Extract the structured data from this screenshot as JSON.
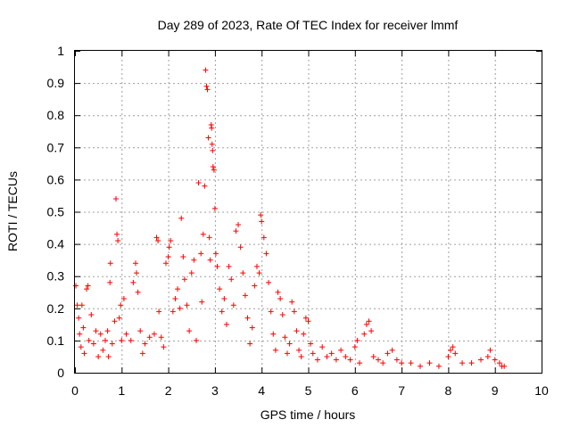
{
  "chart_data": {
    "type": "scatter",
    "title": "Day 289 of 2023, Rate Of TEC Index for receiver lmmf",
    "xlabel": "GPS time / hours",
    "ylabel": "ROTI / TECUs",
    "xlim": [
      0,
      10
    ],
    "ylim": [
      0,
      1
    ],
    "x_ticks": [
      "0",
      "1",
      "2",
      "3",
      "4",
      "5",
      "6",
      "7",
      "8",
      "9",
      "10"
    ],
    "y_ticks": [
      "0",
      "0.1",
      "0.2",
      "0.3",
      "0.4",
      "0.5",
      "0.6",
      "0.7",
      "0.8",
      "0.9",
      "1"
    ],
    "grid": true,
    "marker": "+",
    "marker_color": "#ff0000",
    "series": [
      {
        "name": "ROTI",
        "points": [
          [
            0.02,
            0.27
          ],
          [
            0.05,
            0.21
          ],
          [
            0.08,
            0.17
          ],
          [
            0.1,
            0.12
          ],
          [
            0.13,
            0.08
          ],
          [
            0.15,
            0.21
          ],
          [
            0.18,
            0.14
          ],
          [
            0.2,
            0.06
          ],
          [
            0.25,
            0.26
          ],
          [
            0.28,
            0.27
          ],
          [
            0.3,
            0.1
          ],
          [
            0.35,
            0.18
          ],
          [
            0.4,
            0.09
          ],
          [
            0.45,
            0.13
          ],
          [
            0.5,
            0.05
          ],
          [
            0.55,
            0.12
          ],
          [
            0.6,
            0.07
          ],
          [
            0.65,
            0.1
          ],
          [
            0.7,
            0.13
          ],
          [
            0.72,
            0.05
          ],
          [
            0.75,
            0.28
          ],
          [
            0.76,
            0.34
          ],
          [
            0.8,
            0.09
          ],
          [
            0.85,
            0.16
          ],
          [
            0.88,
            0.54
          ],
          [
            0.9,
            0.43
          ],
          [
            0.92,
            0.41
          ],
          [
            0.95,
            0.17
          ],
          [
            0.98,
            0.21
          ],
          [
            1.0,
            0.1
          ],
          [
            1.05,
            0.23
          ],
          [
            1.1,
            0.12
          ],
          [
            1.2,
            0.1
          ],
          [
            1.25,
            0.28
          ],
          [
            1.3,
            0.34
          ],
          [
            1.32,
            0.31
          ],
          [
            1.35,
            0.25
          ],
          [
            1.4,
            0.13
          ],
          [
            1.45,
            0.06
          ],
          [
            1.5,
            0.09
          ],
          [
            1.6,
            0.11
          ],
          [
            1.7,
            0.12
          ],
          [
            1.75,
            0.42
          ],
          [
            1.78,
            0.41
          ],
          [
            1.8,
            0.19
          ],
          [
            1.85,
            0.11
          ],
          [
            1.9,
            0.08
          ],
          [
            1.95,
            0.34
          ],
          [
            2.0,
            0.36
          ],
          [
            2.02,
            0.39
          ],
          [
            2.05,
            0.41
          ],
          [
            2.1,
            0.19
          ],
          [
            2.15,
            0.23
          ],
          [
            2.2,
            0.26
          ],
          [
            2.25,
            0.2
          ],
          [
            2.28,
            0.48
          ],
          [
            2.32,
            0.36
          ],
          [
            2.35,
            0.29
          ],
          [
            2.4,
            0.21
          ],
          [
            2.45,
            0.13
          ],
          [
            2.5,
            0.31
          ],
          [
            2.55,
            0.35
          ],
          [
            2.6,
            0.1
          ],
          [
            2.65,
            0.59
          ],
          [
            2.7,
            0.37
          ],
          [
            2.72,
            0.22
          ],
          [
            2.75,
            0.43
          ],
          [
            2.78,
            0.58
          ],
          [
            2.8,
            0.94
          ],
          [
            2.82,
            0.89
          ],
          [
            2.84,
            0.88
          ],
          [
            2.86,
            0.73
          ],
          [
            2.88,
            0.42
          ],
          [
            2.9,
            0.35
          ],
          [
            2.92,
            0.77
          ],
          [
            2.93,
            0.76
          ],
          [
            2.94,
            0.71
          ],
          [
            2.95,
            0.69
          ],
          [
            2.96,
            0.64
          ],
          [
            2.98,
            0.63
          ],
          [
            3.0,
            0.51
          ],
          [
            3.02,
            0.37
          ],
          [
            3.05,
            0.33
          ],
          [
            3.1,
            0.26
          ],
          [
            3.15,
            0.19
          ],
          [
            3.2,
            0.23
          ],
          [
            3.25,
            0.15
          ],
          [
            3.3,
            0.33
          ],
          [
            3.35,
            0.29
          ],
          [
            3.4,
            0.21
          ],
          [
            3.45,
            0.44
          ],
          [
            3.5,
            0.46
          ],
          [
            3.55,
            0.39
          ],
          [
            3.6,
            0.31
          ],
          [
            3.65,
            0.24
          ],
          [
            3.7,
            0.17
          ],
          [
            3.75,
            0.09
          ],
          [
            3.8,
            0.14
          ],
          [
            3.85,
            0.27
          ],
          [
            3.9,
            0.33
          ],
          [
            3.95,
            0.31
          ],
          [
            3.98,
            0.49
          ],
          [
            4.0,
            0.47
          ],
          [
            4.05,
            0.42
          ],
          [
            4.1,
            0.37
          ],
          [
            4.15,
            0.28
          ],
          [
            4.2,
            0.19
          ],
          [
            4.25,
            0.12
          ],
          [
            4.3,
            0.07
          ],
          [
            4.35,
            0.25
          ],
          [
            4.4,
            0.23
          ],
          [
            4.45,
            0.18
          ],
          [
            4.5,
            0.11
          ],
          [
            4.55,
            0.06
          ],
          [
            4.6,
            0.09
          ],
          [
            4.65,
            0.22
          ],
          [
            4.7,
            0.19
          ],
          [
            4.75,
            0.13
          ],
          [
            4.8,
            0.07
          ],
          [
            4.85,
            0.05
          ],
          [
            4.9,
            0.12
          ],
          [
            4.95,
            0.17
          ],
          [
            5.0,
            0.16
          ],
          [
            5.05,
            0.09
          ],
          [
            5.1,
            0.06
          ],
          [
            5.2,
            0.04
          ],
          [
            5.3,
            0.08
          ],
          [
            5.4,
            0.05
          ],
          [
            5.5,
            0.06
          ],
          [
            5.6,
            0.04
          ],
          [
            5.7,
            0.07
          ],
          [
            5.8,
            0.05
          ],
          [
            5.9,
            0.04
          ],
          [
            6.0,
            0.08
          ],
          [
            6.05,
            0.1
          ],
          [
            6.1,
            0.03
          ],
          [
            6.2,
            0.12
          ],
          [
            6.25,
            0.15
          ],
          [
            6.3,
            0.16
          ],
          [
            6.35,
            0.13
          ],
          [
            6.4,
            0.05
          ],
          [
            6.5,
            0.04
          ],
          [
            6.6,
            0.03
          ],
          [
            6.7,
            0.06
          ],
          [
            6.8,
            0.07
          ],
          [
            6.9,
            0.04
          ],
          [
            7.0,
            0.03
          ],
          [
            7.2,
            0.03
          ],
          [
            7.4,
            0.02
          ],
          [
            7.6,
            0.03
          ],
          [
            7.8,
            0.02
          ],
          [
            8.0,
            0.05
          ],
          [
            8.05,
            0.07
          ],
          [
            8.1,
            0.08
          ],
          [
            8.15,
            0.06
          ],
          [
            8.3,
            0.03
          ],
          [
            8.5,
            0.03
          ],
          [
            8.7,
            0.04
          ],
          [
            8.85,
            0.05
          ],
          [
            8.9,
            0.07
          ],
          [
            9.0,
            0.04
          ],
          [
            9.1,
            0.03
          ],
          [
            9.15,
            0.02
          ],
          [
            9.2,
            0.02
          ]
        ]
      }
    ]
  }
}
